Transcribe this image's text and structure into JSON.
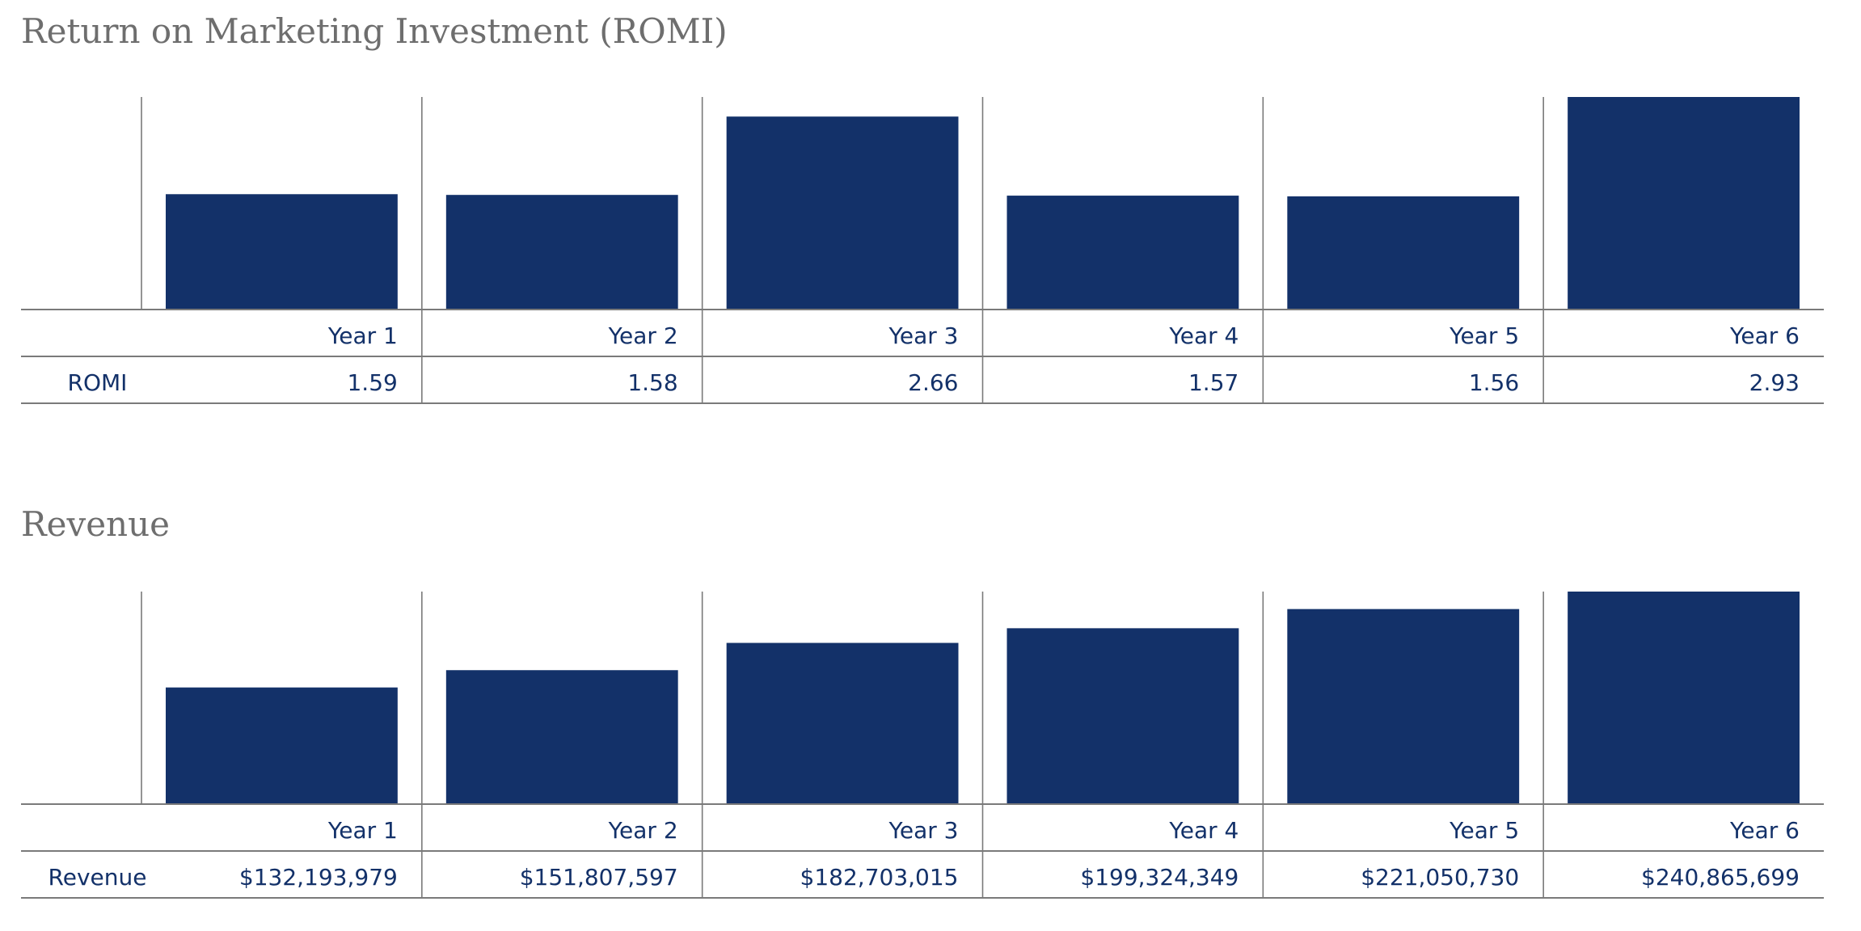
{
  "chart_data": [
    {
      "type": "bar",
      "title": "Return on Marketing Investment (ROMI)",
      "row_label": "ROMI",
      "categories": [
        "Year 1",
        "Year 2",
        "Year 3",
        "Year 4",
        "Year 5",
        "Year 6"
      ],
      "values": [
        1.59,
        1.58,
        2.66,
        1.57,
        1.56,
        2.93
      ],
      "value_labels": [
        "1.59",
        "1.58",
        "2.66",
        "1.57",
        "1.56",
        "2.93"
      ],
      "ylim": [
        0,
        2.93
      ],
      "bar_color": "#133169",
      "grid": true
    },
    {
      "type": "bar",
      "title": "Revenue",
      "row_label": "Revenue",
      "categories": [
        "Year 1",
        "Year 2",
        "Year 3",
        "Year 4",
        "Year 5",
        "Year 6"
      ],
      "values": [
        132193979,
        151807597,
        182703015,
        199324349,
        221050730,
        240865699
      ],
      "value_labels": [
        "$132,193,979",
        "$151,807,597",
        "$182,703,015",
        "$199,324,349",
        "$221,050,730",
        "$240,865,699"
      ],
      "ylim": [
        0,
        240865699
      ],
      "bar_color": "#133169",
      "grid": true
    }
  ]
}
